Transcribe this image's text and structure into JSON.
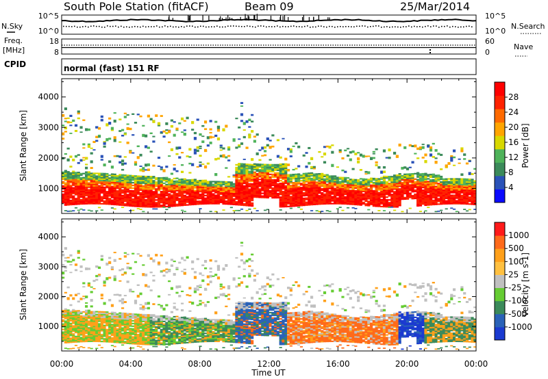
{
  "header": {
    "title": "South Pole Station (fitACF)",
    "beam": "Beam 09",
    "date": "25/Mar/2014"
  },
  "sky_panel": {
    "left_label": "N.Sky",
    "left_ticks": [
      "10^5",
      "10^0"
    ],
    "right_label": "N.Search",
    "right_ticks": [
      "10^5",
      "10^0"
    ]
  },
  "freq_panel": {
    "left_label_1": "Freq.",
    "left_label_2": "[MHz]",
    "left_ticks": [
      "18",
      "8"
    ],
    "right_label": "Nave",
    "right_ticks": [
      "60",
      "0"
    ]
  },
  "cpid": {
    "label": "CPID",
    "value": "normal (fast) 151 RF"
  },
  "colors": {
    "power_scale": [
      "#0a0aff",
      "#2a52b8",
      "#3b8a5a",
      "#4fb35a",
      "#d8d800",
      "#ffa500",
      "#ff6a00",
      "#ff2200",
      "#ff0000"
    ],
    "velocity_scale": [
      "#ff1a1a",
      "#ff6a1a",
      "#ffa01a",
      "#ffc040",
      "#c0c0c0",
      "#66cc33",
      "#3b8a5a",
      "#2a62b8",
      "#1a3ad0"
    ]
  },
  "chart_data": [
    {
      "type": "heatmap",
      "name": "power",
      "xlabel": "",
      "ylabel": "Slant Range [km]",
      "x_ticks": [
        "00:00",
        "04:00",
        "08:00",
        "12:00",
        "16:00",
        "20:00",
        "00:00"
      ],
      "y_ticks": [
        1000,
        2000,
        3000,
        4000
      ],
      "ylim": [
        180,
        4600
      ],
      "colorbar": {
        "label": "Power [dB]",
        "ticks": [
          "4",
          "8",
          "12",
          "16",
          "20",
          "24",
          "28"
        ],
        "range": [
          0,
          32
        ]
      }
    },
    {
      "type": "heatmap",
      "name": "velocity",
      "xlabel": "Time UT",
      "ylabel": "Slant Range [km]",
      "x_ticks": [
        "00:00",
        "04:00",
        "08:00",
        "12:00",
        "16:00",
        "20:00",
        "00:00"
      ],
      "y_ticks": [
        1000,
        2000,
        3000,
        4000
      ],
      "ylim": [
        180,
        4600
      ],
      "colorbar": {
        "label": "Velocity [m s-1]",
        "ticks": [
          "1000",
          "500",
          "100",
          "25",
          "-25",
          "-100",
          "-500",
          "-1000"
        ]
      }
    }
  ]
}
